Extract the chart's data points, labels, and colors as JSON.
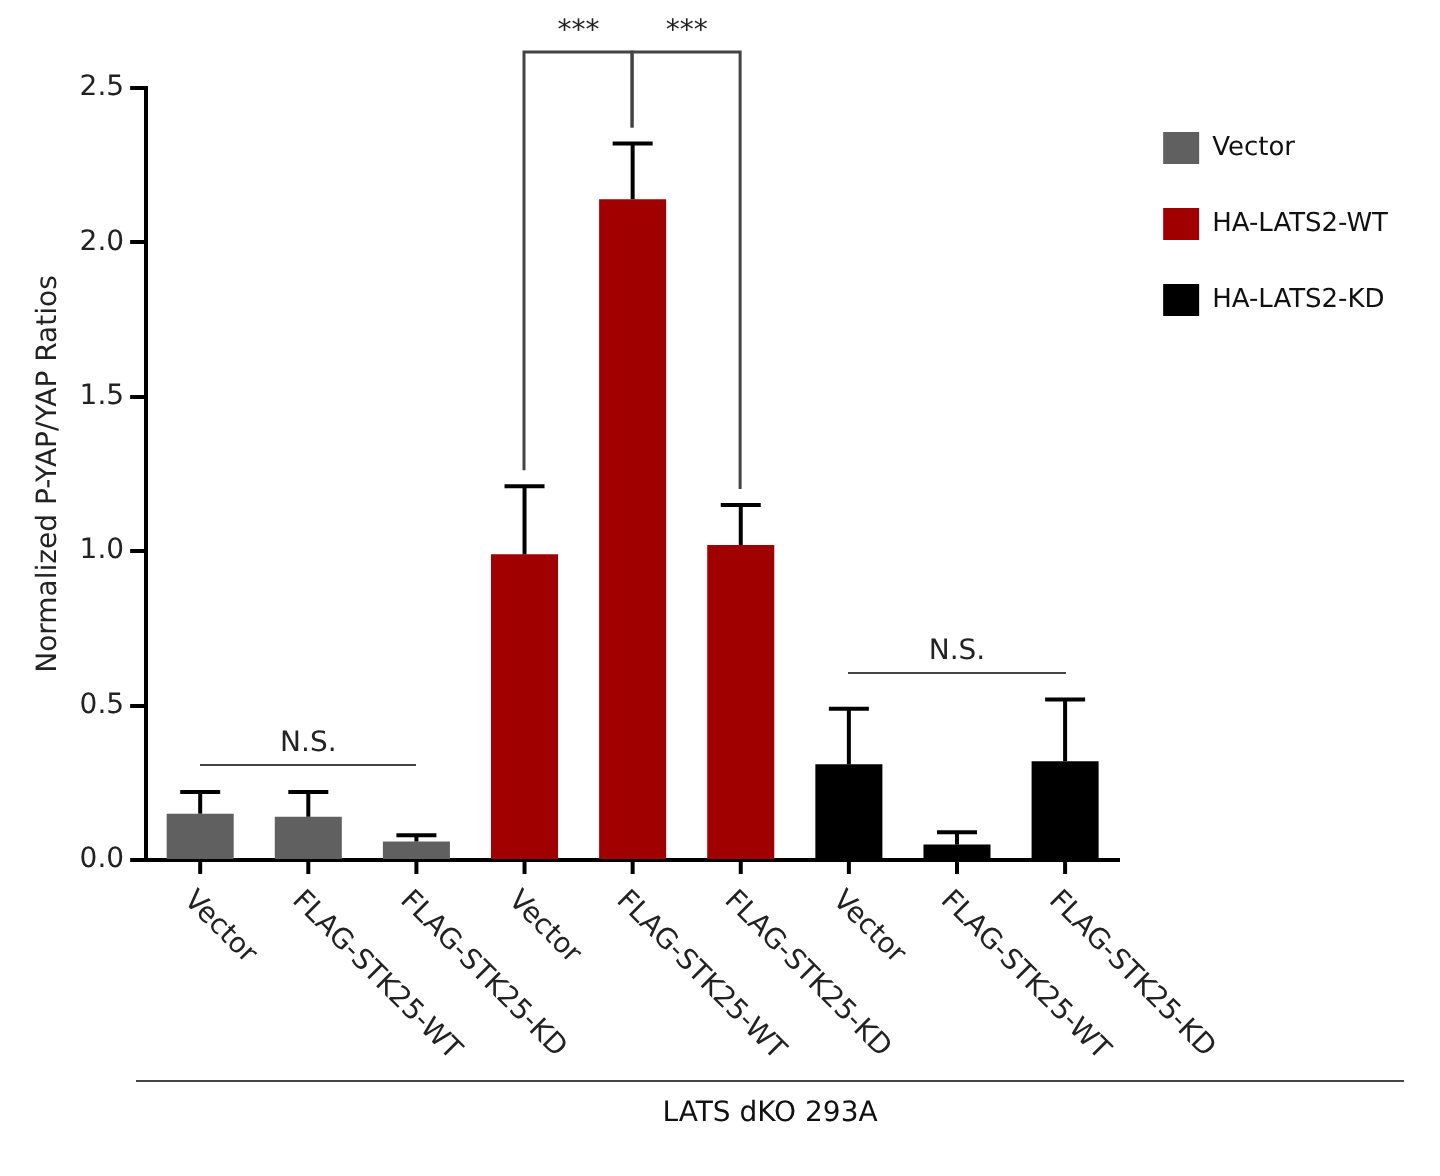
{
  "chart_data": {
    "type": "bar",
    "ylabel": "Normalized P-YAP/YAP Ratios",
    "xlabel": "LATS dKO 293A",
    "categories": [
      "Vector",
      "FLAG-STK25-WT",
      "FLAG-STK25-KD",
      "Vector",
      "FLAG-STK25-WT",
      "FLAG-STK25-KD",
      "Vector",
      "FLAG-STK25-WT",
      "FLAG-STK25-KD"
    ],
    "series": [
      {
        "name": "Vector",
        "color": "#606060",
        "values": [
          0.15,
          0.14,
          0.06,
          null,
          null,
          null,
          null,
          null,
          null
        ],
        "errors": [
          [
            0.15,
            0.22
          ],
          [
            0.14,
            0.22
          ],
          [
            0.06,
            0.08
          ],
          null,
          null,
          null,
          null,
          null,
          null
        ]
      },
      {
        "name": "HA-LATS2-WT",
        "color": "#a00000",
        "values": [
          null,
          null,
          null,
          0.99,
          2.14,
          1.02,
          null,
          null,
          null
        ],
        "errors": [
          null,
          null,
          null,
          [
            0.99,
            1.21
          ],
          [
            2.14,
            2.32
          ],
          [
            1.02,
            1.15
          ],
          null,
          null,
          null
        ]
      },
      {
        "name": "HA-LATS2-KD",
        "color": "#000000",
        "values": [
          null,
          null,
          null,
          null,
          null,
          null,
          0.31,
          0.05,
          0.32
        ],
        "errors": [
          null,
          null,
          null,
          null,
          null,
          null,
          [
            0.31,
            0.49
          ],
          [
            0.05,
            0.09
          ],
          [
            0.32,
            0.52
          ]
        ]
      }
    ],
    "ylim": [
      0,
      2.5
    ],
    "yticks": [
      {
        "value": 0,
        "label": "0.0"
      },
      {
        "value": 0.5,
        "label": "0.5"
      },
      {
        "value": 1,
        "label": "1.0"
      },
      {
        "value": 1.5,
        "label": "1.5"
      },
      {
        "value": 2,
        "label": "2.0"
      },
      {
        "value": 2.5,
        "label": "2.5"
      }
    ],
    "annotations": [
      "***",
      "***",
      "N.S.",
      "N.S."
    ],
    "grid": false,
    "legend": "top right"
  }
}
